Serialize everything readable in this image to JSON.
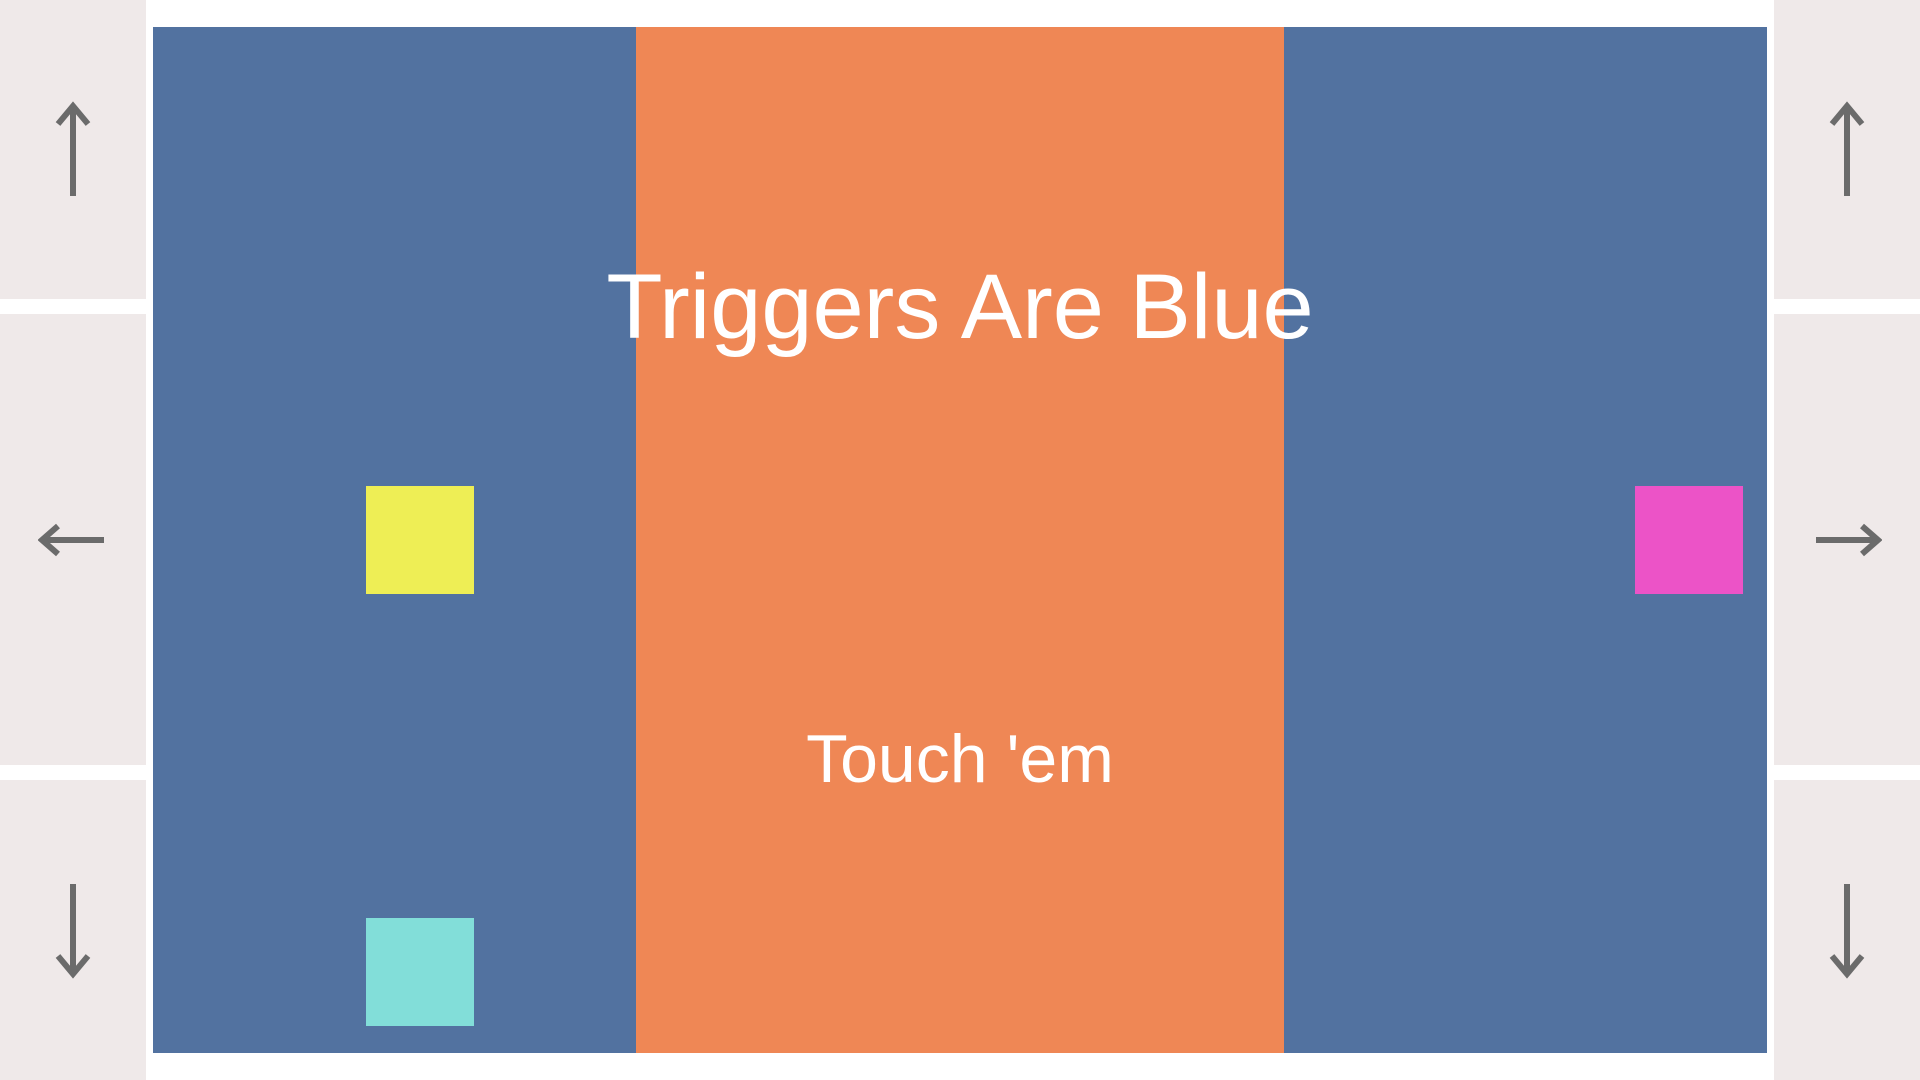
{
  "title": "Triggers Are Blue",
  "subtitle": "Touch 'em",
  "controls": {
    "left": [
      "up-arrow",
      "left-arrow",
      "down-arrow"
    ],
    "right": [
      "up-arrow",
      "right-arrow",
      "down-arrow"
    ]
  },
  "colors": {
    "trigger_zone": "#5272a0",
    "center_zone": "#ef8755",
    "control_panel": "#efe9e9",
    "arrow": "#6b6b6b",
    "yellow_block": "#eeee55",
    "cyan_block": "#82ded9",
    "pink_block": "#ec53c7",
    "text": "#ffffff"
  }
}
